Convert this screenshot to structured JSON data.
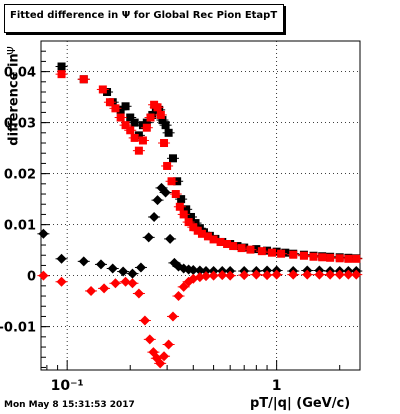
{
  "title_prefix": "Fitted difference in",
  "title_symbol": "Ψ",
  "title_suffix": "for Global Rec Pion EtapT",
  "footer": "Mon May  8 15:31:53 2017",
  "colors": {
    "series_black": "#000000",
    "series_red": "#ff0000"
  },
  "chart_data": {
    "type": "scatter",
    "xlabel": "pT/|q| (GeV/c)",
    "ylabel": "difference in",
    "ylabel_symbol": "Ψ",
    "x_scale": "log",
    "xlim": [
      0.075,
      2.5
    ],
    "ylim": [
      -0.0185,
      0.046
    ],
    "x_ticks": [
      {
        "value": 0.1,
        "label": "10⁻¹"
      },
      {
        "value": 1,
        "label": "1"
      }
    ],
    "y_ticks": [
      {
        "value": -0.01,
        "label": "-0.01"
      },
      {
        "value": 0,
        "label": "0"
      },
      {
        "value": 0.01,
        "label": "0.01"
      },
      {
        "value": 0.02,
        "label": "0.02"
      },
      {
        "value": 0.03,
        "label": "0.03"
      },
      {
        "value": 0.04,
        "label": "0.04"
      }
    ],
    "grid": true,
    "series": [
      {
        "marker": "square",
        "color": "#000000",
        "x": [
          0.094,
          0.12,
          0.155,
          0.165,
          0.18,
          0.19,
          0.2,
          0.21,
          0.22,
          0.23,
          0.24,
          0.255,
          0.265,
          0.275,
          0.285,
          0.295,
          0.305,
          0.32,
          0.335,
          0.35,
          0.37,
          0.39,
          0.41,
          0.43,
          0.45,
          0.48,
          0.51,
          0.55,
          0.6,
          0.65,
          0.7,
          0.8,
          0.9,
          1.0,
          1.1,
          1.2,
          1.35,
          1.5,
          1.65,
          1.8,
          2.0,
          2.2,
          2.4
        ],
        "y": [
          0.041,
          0.0385,
          0.036,
          0.034,
          0.0325,
          0.0332,
          0.031,
          0.03,
          0.0275,
          0.0295,
          0.03,
          0.0315,
          0.033,
          0.0325,
          0.0305,
          0.0295,
          0.028,
          0.023,
          0.0185,
          0.015,
          0.013,
          0.0115,
          0.0103,
          0.0093,
          0.0085,
          0.0078,
          0.0072,
          0.0066,
          0.0062,
          0.0058,
          0.0055,
          0.0052,
          0.0049,
          0.0047,
          0.0045,
          0.0043,
          0.0041,
          0.0039,
          0.0038,
          0.0037,
          0.0036,
          0.0035,
          0.0034
        ]
      },
      {
        "marker": "square",
        "color": "#ff0000",
        "x": [
          0.094,
          0.12,
          0.148,
          0.16,
          0.17,
          0.18,
          0.19,
          0.2,
          0.21,
          0.22,
          0.23,
          0.24,
          0.25,
          0.26,
          0.27,
          0.28,
          0.29,
          0.3,
          0.315,
          0.33,
          0.345,
          0.36,
          0.38,
          0.4,
          0.42,
          0.44,
          0.47,
          0.5,
          0.54,
          0.58,
          0.62,
          0.68,
          0.75,
          0.85,
          0.95,
          1.05,
          1.2,
          1.35,
          1.5,
          1.65,
          1.8,
          2.0,
          2.2,
          2.4
        ],
        "y": [
          0.0395,
          0.0385,
          0.0365,
          0.034,
          0.0328,
          0.031,
          0.0295,
          0.0285,
          0.027,
          0.0245,
          0.0265,
          0.029,
          0.031,
          0.0335,
          0.033,
          0.0315,
          0.026,
          0.0215,
          0.0185,
          0.016,
          0.0135,
          0.012,
          0.0105,
          0.0095,
          0.0088,
          0.0082,
          0.0077,
          0.0071,
          0.0066,
          0.0062,
          0.0058,
          0.0054,
          0.0051,
          0.0048,
          0.0045,
          0.0043,
          0.0041,
          0.0039,
          0.0037,
          0.0036,
          0.0035,
          0.0034,
          0.0033,
          0.0033
        ]
      },
      {
        "marker": "diamond",
        "color": "#000000",
        "x": [
          0.077,
          0.094,
          0.12,
          0.145,
          0.165,
          0.185,
          0.205,
          0.225,
          0.245,
          0.26,
          0.27,
          0.282,
          0.295,
          0.31,
          0.325,
          0.34,
          0.36,
          0.38,
          0.4,
          0.43,
          0.46,
          0.5,
          0.55,
          0.6,
          0.7,
          0.8,
          0.9,
          1.0,
          1.2,
          1.4,
          1.6,
          1.8,
          2.0,
          2.2,
          2.4
        ],
        "y": [
          0.0082,
          0.0033,
          0.0028,
          0.0022,
          0.0014,
          0.0008,
          0.0004,
          0.0016,
          0.0075,
          0.0115,
          0.0148,
          0.0172,
          0.0163,
          0.0072,
          0.0025,
          0.0018,
          0.0014,
          0.0012,
          0.0011,
          0.001,
          0.0009,
          0.0009,
          0.0009,
          0.0009,
          0.0009,
          0.0009,
          0.001,
          0.001,
          0.0009,
          0.001,
          0.001,
          0.0009,
          0.0009,
          0.0009,
          0.0009
        ]
      },
      {
        "marker": "diamond",
        "color": "#ff0000",
        "x": [
          0.077,
          0.094,
          0.13,
          0.15,
          0.17,
          0.19,
          0.205,
          0.22,
          0.235,
          0.248,
          0.258,
          0.268,
          0.278,
          0.29,
          0.305,
          0.32,
          0.34,
          0.36,
          0.38,
          0.4,
          0.43,
          0.46,
          0.5,
          0.55,
          0.6,
          0.7,
          0.8,
          0.9,
          1.0,
          1.2,
          1.4,
          1.6,
          1.8,
          2.0,
          2.2,
          2.4
        ],
        "y": [
          0.0,
          -0.0012,
          -0.003,
          -0.0025,
          -0.0015,
          -0.0012,
          -0.0015,
          -0.0035,
          -0.0088,
          -0.0125,
          -0.015,
          -0.0162,
          -0.0172,
          -0.0158,
          -0.0135,
          -0.008,
          -0.004,
          -0.0022,
          -0.0012,
          -0.0006,
          -0.0003,
          -0.0001,
          0.0,
          0.0001,
          0.0,
          0.0001,
          0.0002,
          0.0001,
          0.0002,
          0.0002,
          0.0002,
          0.0002,
          0.0002,
          0.0002,
          0.0002,
          0.0002
        ]
      }
    ]
  }
}
